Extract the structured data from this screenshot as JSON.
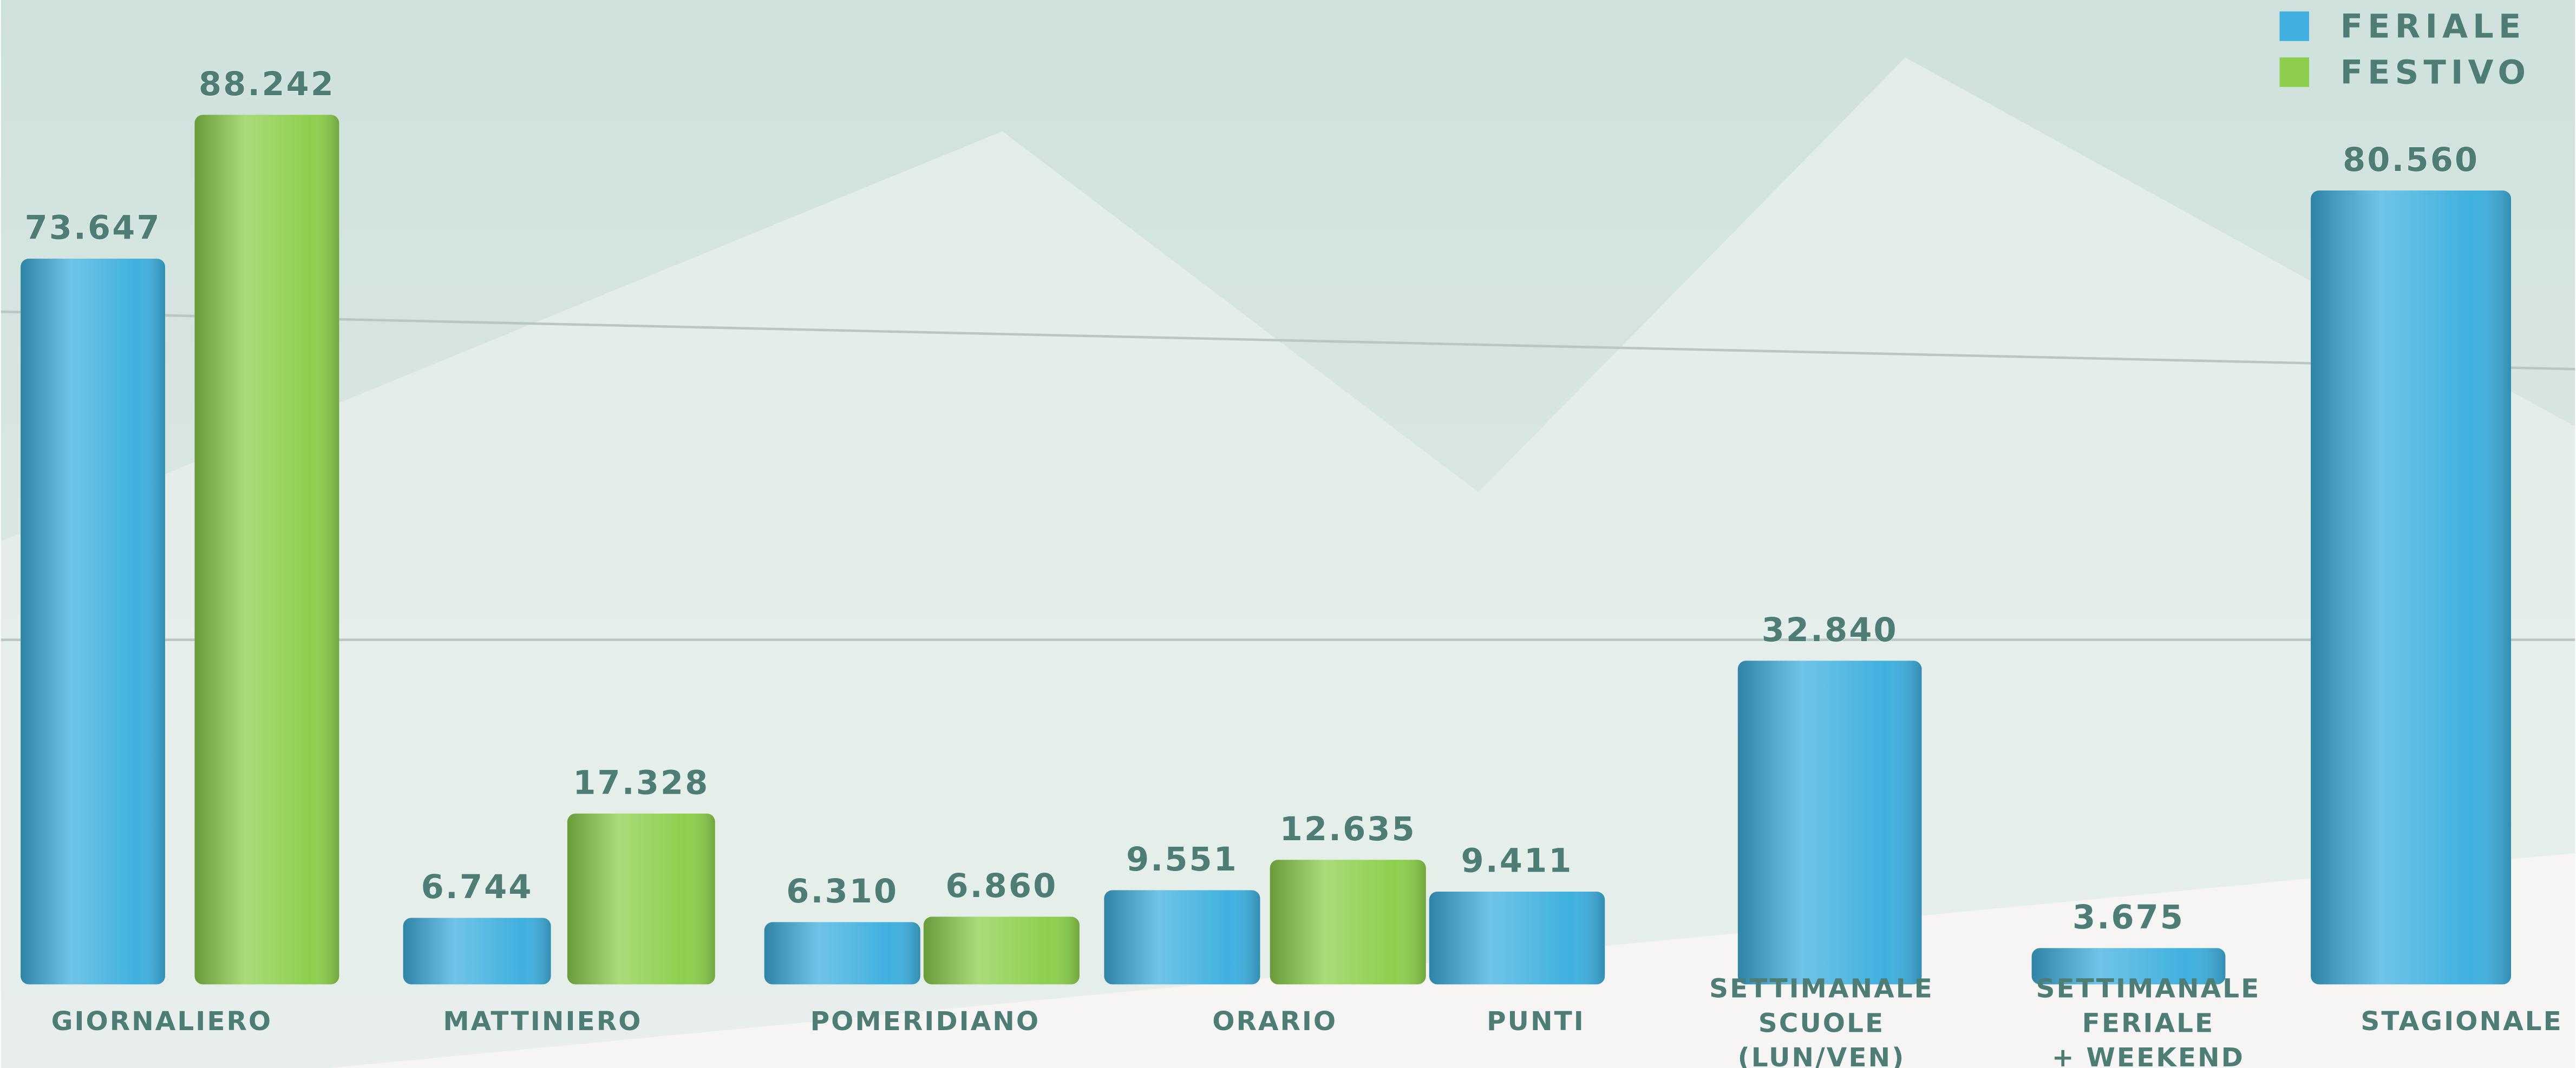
{
  "chart_data": {
    "type": "bar",
    "categories": [
      [
        "GIORNALIERO"
      ],
      [
        "MATTINIERO"
      ],
      [
        "POMERIDIANO"
      ],
      [
        "ORARIO"
      ],
      [
        "PUNTI"
      ],
      [
        "SETTIMANALE",
        "SCUOLE",
        "(LUN/VEN)"
      ],
      [
        "SETTIMANALE",
        "FERIALE",
        "+ WEEKEND"
      ],
      [
        "STAGIONALE"
      ]
    ],
    "series": [
      {
        "name": "FERIALE",
        "color": "#3fb0df",
        "values": [
          73647,
          6744,
          6310,
          9551,
          9411,
          32840,
          3675,
          80560
        ],
        "value_labels": [
          "73.647",
          "6.744",
          "6.310",
          "9.551",
          "9.411",
          "32.840",
          "3.675",
          "80.560"
        ]
      },
      {
        "name": "FESTIVO",
        "color": "#8ccf4d",
        "values": [
          88242,
          17328,
          6860,
          12635,
          null,
          null,
          null,
          null
        ],
        "value_labels": [
          "88.242",
          "17.328",
          "6.860",
          "12.635",
          null,
          null,
          null,
          null
        ]
      }
    ],
    "legend": "top-right"
  }
}
